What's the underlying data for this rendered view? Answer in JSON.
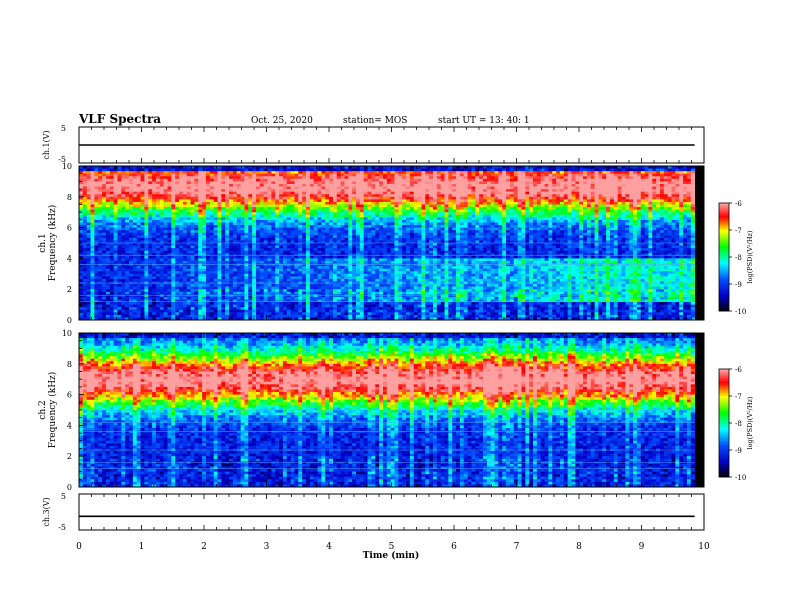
{
  "header": {
    "title": "VLF Spectra",
    "date": "Oct. 25, 2020",
    "station": "station= MOS",
    "start": "start  UT  =   13: 40: 1"
  },
  "chart_data": [
    {
      "type": "line",
      "panel": "waveform-ch1",
      "ylabel": "ch.1(V)",
      "ylim": [
        -5,
        5
      ],
      "yticks": [
        "5",
        "-5"
      ],
      "xlim": [
        0,
        10
      ],
      "series": [
        {
          "x": [
            0,
            9.85
          ],
          "y": [
            0,
            0
          ]
        }
      ]
    },
    {
      "type": "heatmap",
      "panel": "spectrogram-ch1",
      "ylabel": "ch.1 Frequency (kHz)",
      "ylim": [
        0,
        10
      ],
      "yticks": [
        "0",
        "2",
        "4",
        "6",
        "8",
        "10"
      ],
      "xlim": [
        0,
        10
      ],
      "data_xmax": 9.85,
      "band_center_khz": 8.7,
      "colorbar": {
        "label": "log(PSD)(V²/Hz)",
        "ticks": [
          "-6",
          "-7",
          "-8",
          "-9",
          "-10"
        ],
        "range": [
          -10,
          -6
        ]
      }
    },
    {
      "type": "heatmap",
      "panel": "spectrogram-ch2",
      "ylabel": "ch.2 Frequency (kHz)",
      "ylim": [
        0,
        10
      ],
      "yticks": [
        "0",
        "2",
        "4",
        "6",
        "8",
        "10"
      ],
      "xlim": [
        0,
        10
      ],
      "data_xmax": 9.85,
      "band_center_khz": 7.0,
      "colorbar": {
        "label": "log(PSD)(V²/Hz)",
        "ticks": [
          "-6",
          "-7",
          "-8",
          "-9",
          "-10"
        ],
        "range": [
          -10,
          -6
        ]
      }
    },
    {
      "type": "line",
      "panel": "waveform-ch3",
      "ylabel": "ch.3(V)",
      "ylim": [
        -5,
        5
      ],
      "yticks": [
        "5",
        "-5"
      ],
      "xlim": [
        0,
        10
      ],
      "xlabel": "Time  (min)",
      "xticks": [
        "0",
        "1",
        "2",
        "3",
        "4",
        "5",
        "6",
        "7",
        "8",
        "9",
        "10"
      ],
      "series": [
        {
          "x": [
            0,
            9.85
          ],
          "y": [
            -1.2,
            -1.2
          ]
        }
      ]
    }
  ],
  "colors": {
    "colormap": [
      "#000000",
      "#0000ff",
      "#00ffff",
      "#00ff00",
      "#ffff00",
      "#ff0000",
      "#ff9999"
    ]
  }
}
